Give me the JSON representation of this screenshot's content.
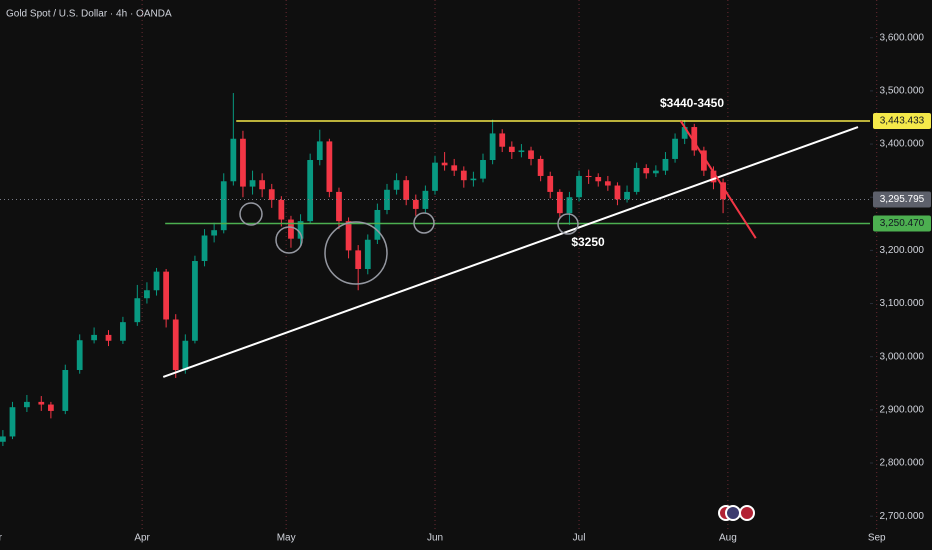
{
  "chart_data": {
    "type": "candlestick",
    "title": "Gold Spot / U.S. Dollar · 4h · OANDA",
    "up_color": "#089981",
    "down_color": "#f23645",
    "x": [
      62,
      64,
      67,
      70,
      72,
      75,
      78,
      81,
      84,
      87,
      90,
      92,
      94,
      96,
      98,
      100,
      102,
      104,
      106,
      108,
      110,
      112,
      114,
      116,
      118,
      120,
      122,
      124,
      126,
      128,
      130,
      132,
      134,
      136,
      138,
      140,
      142,
      144,
      146,
      148,
      150,
      152,
      154,
      156,
      158,
      160,
      162,
      164,
      166,
      168,
      170,
      172,
      174,
      176,
      178,
      180,
      182,
      184,
      186,
      188,
      190,
      192,
      194,
      196,
      198,
      200,
      202,
      204,
      206,
      208,
      210,
      212
    ],
    "open": [
      2840,
      2850,
      2905,
      2915,
      2910,
      2898,
      2975,
      3031,
      3041,
      3030,
      3065,
      3110,
      3125,
      3160,
      3070,
      2975,
      3030,
      3180,
      3228,
      3238,
      3330,
      3410,
      3320,
      3332,
      3315,
      3295,
      3258,
      3222,
      3255,
      3370,
      3405,
      3310,
      3255,
      3200,
      3165,
      3220,
      3276,
      3314,
      3332,
      3295,
      3278,
      3312,
      3365,
      3360,
      3350,
      3332,
      3335,
      3370,
      3420,
      3395,
      3385,
      3388,
      3372,
      3340,
      3310,
      3270,
      3300,
      3340,
      3338,
      3330,
      3322,
      3296,
      3310,
      3355,
      3345,
      3350,
      3372,
      3410,
      3432,
      3388,
      3350,
      3328
    ],
    "high": [
      2862,
      2915,
      2928,
      2926,
      2915,
      2985,
      3042,
      3055,
      3050,
      3075,
      3135,
      3140,
      3167,
      3165,
      3080,
      3042,
      3190,
      3240,
      3252,
      3345,
      3496,
      3425,
      3350,
      3345,
      3325,
      3302,
      3265,
      3268,
      3382,
      3427,
      3410,
      3318,
      3262,
      3210,
      3230,
      3288,
      3325,
      3345,
      3340,
      3305,
      3322,
      3378,
      3385,
      3372,
      3358,
      3348,
      3382,
      3446,
      3428,
      3405,
      3400,
      3395,
      3378,
      3348,
      3315,
      3310,
      3350,
      3352,
      3345,
      3340,
      3328,
      3322,
      3365,
      3362,
      3360,
      3385,
      3420,
      3445,
      3438,
      3395,
      3358,
      3335
    ],
    "low": [
      2832,
      2845,
      2896,
      2898,
      2884,
      2892,
      2968,
      3025,
      3020,
      3024,
      3058,
      3100,
      3115,
      3055,
      2960,
      2968,
      3025,
      3170,
      3215,
      3232,
      3322,
      3300,
      3305,
      3300,
      3280,
      3245,
      3205,
      3210,
      3250,
      3360,
      3300,
      3240,
      3185,
      3125,
      3155,
      3212,
      3268,
      3305,
      3285,
      3265,
      3270,
      3305,
      3350,
      3340,
      3318,
      3320,
      3328,
      3362,
      3385,
      3372,
      3375,
      3360,
      3330,
      3298,
      3262,
      3248,
      3292,
      3325,
      3320,
      3312,
      3285,
      3290,
      3305,
      3335,
      3338,
      3342,
      3365,
      3400,
      3378,
      3340,
      3315,
      3270
    ],
    "close": [
      2850,
      2905,
      2915,
      2910,
      2898,
      2975,
      3031,
      3041,
      3030,
      3065,
      3110,
      3125,
      3160,
      3070,
      2975,
      3030,
      3180,
      3228,
      3238,
      3330,
      3410,
      3320,
      3332,
      3315,
      3295,
      3258,
      3222,
      3255,
      3370,
      3405,
      3310,
      3255,
      3200,
      3165,
      3220,
      3276,
      3314,
      3332,
      3295,
      3278,
      3312,
      3365,
      3360,
      3350,
      3332,
      3335,
      3370,
      3420,
      3395,
      3385,
      3388,
      3372,
      3340,
      3310,
      3270,
      3300,
      3340,
      3338,
      3330,
      3322,
      3296,
      3310,
      3355,
      3345,
      3350,
      3372,
      3410,
      3432,
      3388,
      3350,
      3328,
      3296
    ],
    "xlim": [
      61.4,
      242.6
    ],
    "xticks": [
      {
        "value": 60,
        "label": "Mar"
      },
      {
        "value": 91,
        "label": "Apr"
      },
      {
        "value": 121,
        "label": "May"
      },
      {
        "value": 152,
        "label": "Jun"
      },
      {
        "value": 182,
        "label": "Jul"
      },
      {
        "value": 213,
        "label": "Aug"
      },
      {
        "value": 244,
        "label": "Sep"
      }
    ],
    "ylim": [
      2674,
      3671
    ],
    "yticks": [
      {
        "value": 2700,
        "label": "2,700.000"
      },
      {
        "value": 2800,
        "label": "2,800.000"
      },
      {
        "value": 2900,
        "label": "2,900.000"
      },
      {
        "value": 3000,
        "label": "3,000.000"
      },
      {
        "value": 3100,
        "label": "3,100.000"
      },
      {
        "value": 3200,
        "label": "3,200.000"
      },
      {
        "value": 3300,
        "label": "3,300.000"
      },
      {
        "value": 3400,
        "label": "3,400.000"
      },
      {
        "value": 3500,
        "label": "3,500.000"
      },
      {
        "value": 3600,
        "label": "3,600.000"
      }
    ],
    "levels": [
      {
        "value": 3443.433,
        "label": "3,443.433",
        "color": "#f5e94a",
        "from": 110.6
      },
      {
        "value": 3295.795,
        "label": "3,295.795",
        "color": "#5d606b",
        "from": 61.4
      },
      {
        "value": 3250.47,
        "label": "3,250.470",
        "color": "#4caf50",
        "from": 95.8
      }
    ],
    "trendlines": [
      {
        "color": "#ffffff",
        "x": [
          95.4,
          240.1
        ],
        "y": [
          2962,
          3432
        ]
      },
      {
        "color": "#f23645",
        "x": [
          203.2,
          218.8
        ],
        "y": [
          3443,
          3223
        ]
      }
    ],
    "annotations": [
      "$3440-3450",
      "$3250"
    ]
  }
}
